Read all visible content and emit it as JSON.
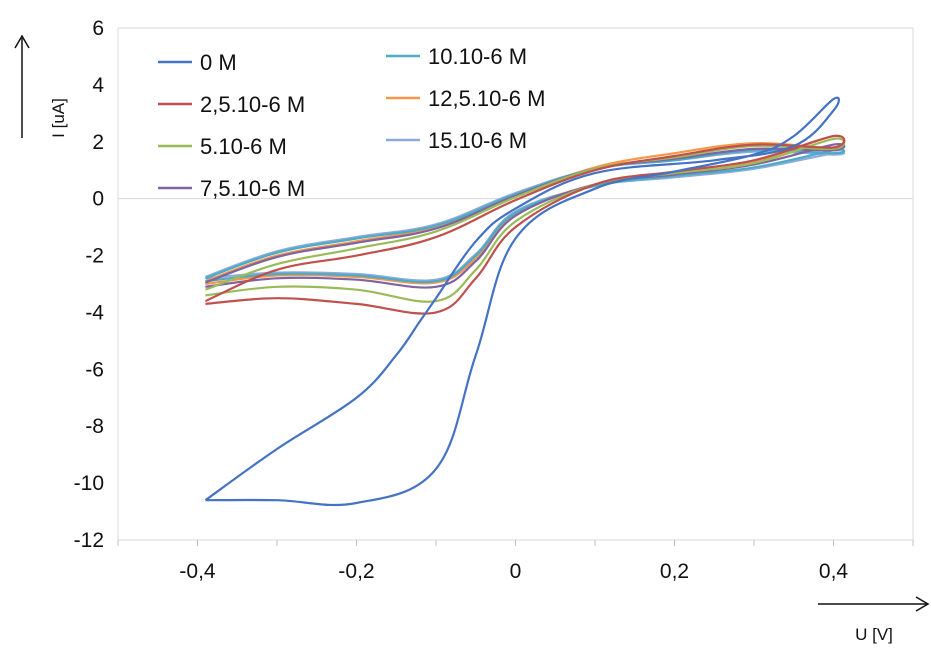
{
  "chart_data": {
    "type": "line",
    "title": "",
    "xlabel": "U [V]",
    "ylabel": "I [uA]",
    "xlim": [
      -0.5,
      0.5
    ],
    "ylim": [
      -12,
      6
    ],
    "x_ticks": [
      "-0,4",
      "-0,2",
      "0",
      "0,2",
      "0,4"
    ],
    "x_tick_values": [
      -0.4,
      -0.2,
      0,
      0.2,
      0.4
    ],
    "y_ticks": [
      "6",
      "4",
      "2",
      "0",
      "-2",
      "-4",
      "-6",
      "-8",
      "-10",
      "-12"
    ],
    "y_tick_values": [
      6,
      4,
      2,
      0,
      -2,
      -4,
      -6,
      -8,
      -10,
      -12
    ],
    "grid": false,
    "legend_position": "top-left",
    "series": [
      {
        "name": "0 M",
        "color": "#4472C4",
        "x": [
          -0.39,
          -0.3,
          -0.2,
          -0.1,
          -0.05,
          0,
          0.1,
          0.2,
          0.3,
          0.35,
          0.4,
          0.4,
          0.35,
          0.25,
          0.1,
          0,
          -0.05,
          -0.1,
          -0.12,
          -0.15,
          -0.2,
          -0.3,
          -0.39
        ],
        "y": [
          -10.6,
          -10.6,
          -10.7,
          -9.5,
          -5.5,
          -1.4,
          0.35,
          0.95,
          1.55,
          2.2,
          3.5,
          3.1,
          1.85,
          1.35,
          0.9,
          -0.35,
          -1.5,
          -3.5,
          -4.3,
          -5.5,
          -7.0,
          -8.8,
          -10.6
        ]
      },
      {
        "name": "2,5.10-6 M",
        "color": "#C0504D",
        "x": [
          -0.39,
          -0.3,
          -0.2,
          -0.1,
          -0.05,
          0,
          0.1,
          0.2,
          0.3,
          0.4,
          0.4,
          0.3,
          0.2,
          0.1,
          0,
          -0.1,
          -0.2,
          -0.3,
          -0.39
        ],
        "y": [
          -3.7,
          -3.5,
          -3.7,
          -4.0,
          -2.8,
          -1.0,
          0.5,
          0.95,
          1.35,
          2.2,
          1.8,
          1.9,
          1.5,
          1.0,
          -0.05,
          -1.35,
          -2.0,
          -2.5,
          -3.6
        ]
      },
      {
        "name": "5.10-6 M",
        "color": "#9BBB59",
        "x": [
          -0.39,
          -0.3,
          -0.2,
          -0.1,
          -0.05,
          0,
          0.1,
          0.2,
          0.3,
          0.4,
          0.4,
          0.3,
          0.2,
          0.1,
          0,
          -0.1,
          -0.2,
          -0.3,
          -0.39
        ],
        "y": [
          -3.4,
          -3.1,
          -3.2,
          -3.6,
          -2.5,
          -0.8,
          0.5,
          0.9,
          1.25,
          2.1,
          1.75,
          1.85,
          1.45,
          1.05,
          0.05,
          -1.15,
          -1.75,
          -2.3,
          -3.2
        ]
      },
      {
        "name": "7,5.10-6 M",
        "color": "#8064A2",
        "x": [
          -0.39,
          -0.3,
          -0.2,
          -0.1,
          -0.05,
          0,
          0.1,
          0.2,
          0.3,
          0.4,
          0.4,
          0.3,
          0.2,
          0.1,
          0,
          -0.1,
          -0.2,
          -0.3,
          -0.39
        ],
        "y": [
          -3.1,
          -2.8,
          -2.85,
          -3.1,
          -2.2,
          -0.6,
          0.5,
          0.85,
          1.2,
          1.9,
          1.7,
          1.75,
          1.4,
          1.05,
          0.1,
          -1.05,
          -1.55,
          -2.05,
          -2.95
        ]
      },
      {
        "name": "10.10-6 M",
        "color": "#4BACC6",
        "x": [
          -0.39,
          -0.3,
          -0.2,
          -0.1,
          -0.05,
          0,
          0.1,
          0.2,
          0.3,
          0.4,
          0.4,
          0.3,
          0.2,
          0.1,
          0,
          -0.1,
          -0.2,
          -0.3,
          -0.39
        ],
        "y": [
          -2.9,
          -2.65,
          -2.7,
          -2.9,
          -2.0,
          -0.5,
          0.45,
          0.8,
          1.1,
          1.7,
          1.6,
          1.7,
          1.35,
          1.05,
          0.15,
          -0.95,
          -1.4,
          -1.9,
          -2.8
        ]
      },
      {
        "name": "12,5.10-6 M",
        "color": "#F79646",
        "x": [
          -0.39,
          -0.3,
          -0.2,
          -0.1,
          -0.05,
          0,
          0.1,
          0.2,
          0.3,
          0.4,
          0.4,
          0.3,
          0.2,
          0.1,
          0,
          -0.1,
          -0.2,
          -0.3,
          -0.39
        ],
        "y": [
          -3.0,
          -2.7,
          -2.75,
          -2.95,
          -2.1,
          -0.55,
          0.5,
          0.85,
          1.3,
          2.2,
          1.8,
          1.95,
          1.6,
          1.1,
          0.1,
          -1.0,
          -1.5,
          -2.0,
          -2.9
        ]
      },
      {
        "name": "15.10-6 M",
        "color": "#8EA9DB",
        "x": [
          -0.39,
          -0.3,
          -0.2,
          -0.1,
          -0.05,
          0,
          0.1,
          0.2,
          0.3,
          0.4,
          0.4,
          0.3,
          0.2,
          0.1,
          0,
          -0.1,
          -0.2,
          -0.3,
          -0.39
        ],
        "y": [
          -2.8,
          -2.6,
          -2.65,
          -2.85,
          -1.95,
          -0.45,
          0.45,
          0.75,
          1.05,
          1.6,
          1.55,
          1.65,
          1.35,
          1.05,
          0.2,
          -0.9,
          -1.35,
          -1.85,
          -2.75
        ]
      }
    ]
  }
}
